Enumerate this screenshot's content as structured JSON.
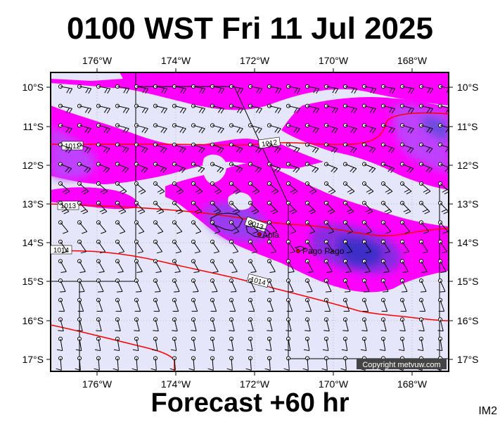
{
  "title": "0100 WST Fri 11 Jul 2025",
  "footer": "Forecast +60 hr",
  "product_code": "IM2",
  "copyright": "Copyright metvuw.com",
  "longitudes": [
    "176°W",
    "174°W",
    "172°W",
    "170°W",
    "168°W"
  ],
  "latitudes": [
    "10°S",
    "11°S",
    "12°S",
    "13°S",
    "14°S",
    "15°S",
    "16°S",
    "17°S"
  ],
  "pressure_labels": [
    "1012",
    "1012",
    "1013",
    "1013",
    "1014",
    "1014"
  ],
  "cities": [
    "Apia",
    "Pago Pago"
  ],
  "colors": {
    "background": "#e6e6fa",
    "rain_light": "#ff00ff",
    "rain_medium": "#c040ff",
    "rain_heavy": "#8a2be2",
    "rain_very_heavy": "#4b3bd8",
    "isobar": "#ff0000",
    "coast": "#000000"
  }
}
